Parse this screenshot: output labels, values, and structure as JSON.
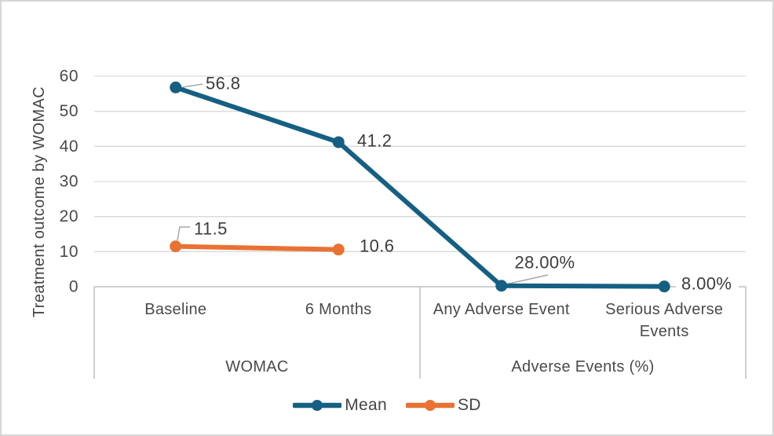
{
  "chart_data": {
    "type": "line",
    "title": "",
    "y_axis": {
      "title": "Treatment outcome by WOMAC",
      "min": 0,
      "max": 60,
      "ticks": [
        0,
        10,
        20,
        30,
        40,
        50,
        60
      ]
    },
    "x_axis": {
      "categories": [
        {
          "label": "Baseline",
          "lines": [
            "Baseline"
          ]
        },
        {
          "label": "6 Months",
          "lines": [
            "6 Months"
          ]
        },
        {
          "label": "Any Adverse Event",
          "lines": [
            "Any Adverse Event"
          ]
        },
        {
          "label": "Serious Adverse Events",
          "lines": [
            "Serious Adverse",
            "Events"
          ]
        }
      ],
      "groups": [
        {
          "label": "WOMAC",
          "span": 2
        },
        {
          "label": "Adverse Events (%)",
          "span": 2
        }
      ]
    },
    "series": [
      {
        "name": "Mean",
        "color": "#156082",
        "values": [
          56.8,
          41.2,
          0.28,
          0.08
        ],
        "data_labels": [
          "56.8",
          "41.2",
          "28.00%",
          "8.00%"
        ]
      },
      {
        "name": "SD",
        "color": "#E97132",
        "values": [
          11.5,
          10.6,
          null,
          null
        ],
        "data_labels": [
          "11.5",
          "10.6",
          null,
          null
        ]
      }
    ],
    "legend": {
      "position": "bottom",
      "items": [
        {
          "label": "Mean",
          "color": "#156082"
        },
        {
          "label": "SD",
          "color": "#E97132"
        }
      ]
    },
    "grid": true,
    "ylim": [
      0,
      60
    ]
  },
  "colors": {
    "background": "#FFFFFF",
    "border": "#D6D6D6",
    "gridline": "#D9D9D9",
    "axis_line": "#BFBFBF",
    "leader": "#A6A6A6",
    "axis_text": "#4A4A4A",
    "data_label_text": "#3C3C3C"
  }
}
